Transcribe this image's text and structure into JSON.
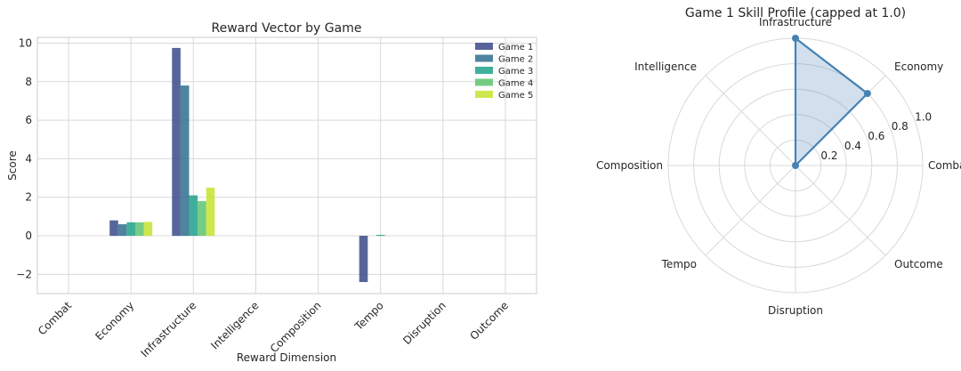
{
  "colors": {
    "game_1": "#3b4a8b",
    "game_2": "#2f6f8e",
    "game_3": "#1fa18a",
    "game_4": "#5ec36f",
    "game_5": "#c4e32f",
    "radar_line": "#4682b4",
    "radar_fill": "#4682b4"
  },
  "chart_data": [
    {
      "type": "bar",
      "title": "Reward Vector by Game",
      "xlabel": "Reward Dimension",
      "ylabel": "Score",
      "ylim": [
        -3,
        10.3
      ],
      "yticks": [
        -2,
        0,
        2,
        4,
        6,
        8,
        10
      ],
      "ytick_labels": [
        "−2",
        "0",
        "2",
        "4",
        "6",
        "8",
        "10"
      ],
      "grid": true,
      "legend_position": "top-right",
      "categories": [
        "Combat",
        "Economy",
        "Infrastructure",
        "Intelligence",
        "Composition",
        "Tempo",
        "Disruption",
        "Outcome"
      ],
      "series": [
        {
          "name": "Game 1",
          "values": [
            0,
            0.8,
            9.75,
            0,
            0,
            -2.4,
            0,
            0
          ]
        },
        {
          "name": "Game 2",
          "values": [
            0,
            0.6,
            7.8,
            0,
            0,
            0,
            0,
            0
          ]
        },
        {
          "name": "Game 3",
          "values": [
            0,
            0.7,
            2.1,
            0,
            0,
            0.05,
            0,
            0
          ]
        },
        {
          "name": "Game 4",
          "values": [
            0,
            0.7,
            1.8,
            0,
            0,
            0,
            0,
            0
          ]
        },
        {
          "name": "Game 5",
          "values": [
            0,
            0.72,
            2.5,
            0,
            0,
            0,
            0,
            0
          ]
        }
      ]
    },
    {
      "type": "radar",
      "title": "Game 1 Skill Profile (capped at 1.0)",
      "rlim": [
        0,
        1.0
      ],
      "rticks": [
        0.2,
        0.4,
        0.6,
        0.8,
        1.0
      ],
      "rtick_labels": [
        "0.2",
        "0.4",
        "0.6",
        "0.8",
        "1.0"
      ],
      "grid": true,
      "axes": [
        "Combat",
        "Economy",
        "Infrastructure",
        "Intelligence",
        "Composition",
        "Tempo",
        "Disruption",
        "Outcome"
      ],
      "series": [
        {
          "values": [
            0,
            0.8,
            1.0,
            0,
            0,
            0,
            0,
            0
          ]
        }
      ]
    }
  ]
}
